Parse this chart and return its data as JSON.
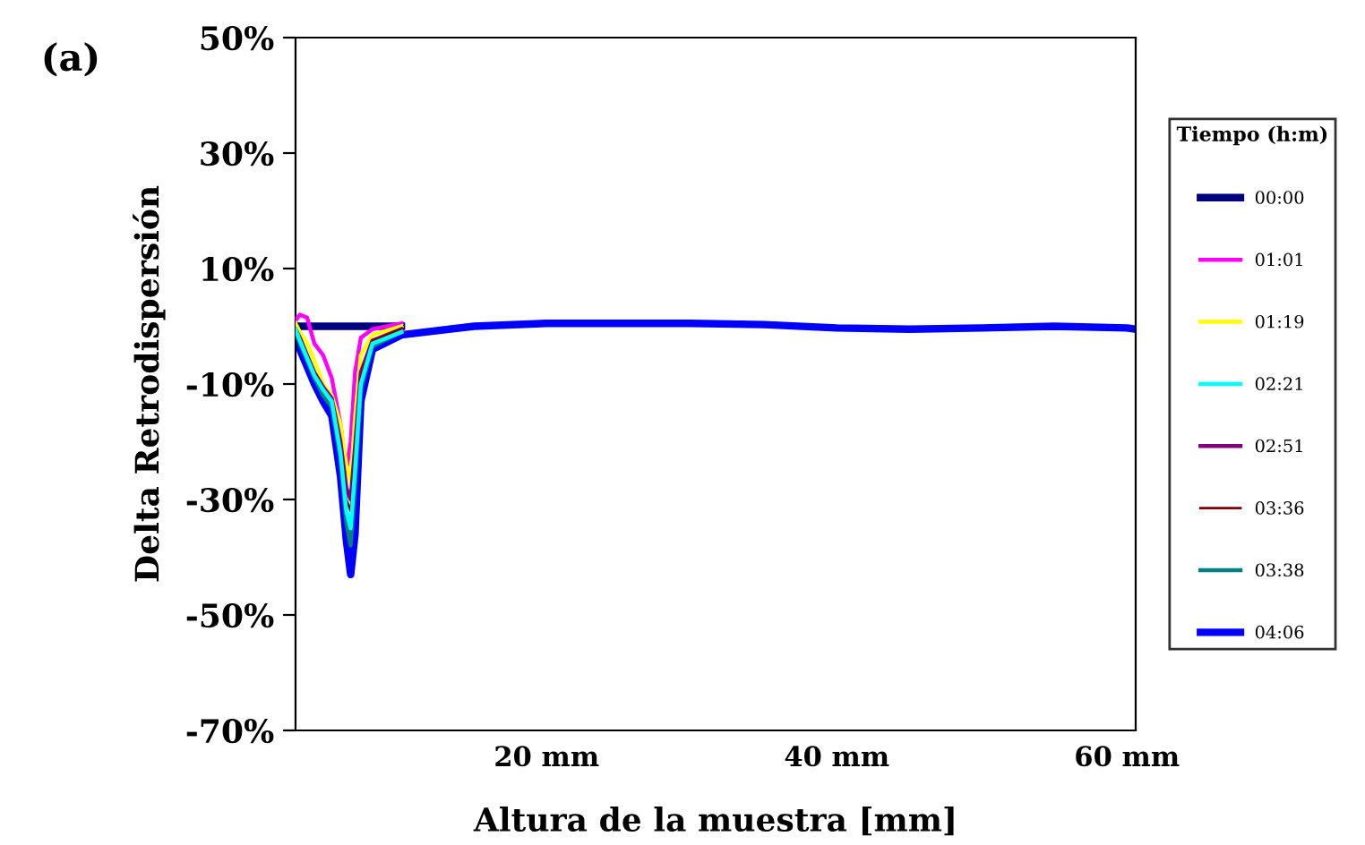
{
  "chart_data": {
    "type": "line",
    "xlabel": "Altura de la muestra [mm]",
    "ylabel": "Delta Retrodispersión",
    "legend_title": "Tiempo (h:m)",
    "annotations": [
      "(a)"
    ],
    "xlim": [
      2.7,
      60.6
    ],
    "xticks": [
      {
        "value": 20,
        "label": "20 mm"
      },
      {
        "value": 40,
        "label": "40 mm"
      },
      {
        "value": 60,
        "label": "60 mm"
      }
    ],
    "ylim": [
      -70,
      50
    ],
    "yticks": [
      {
        "value": -70,
        "label": "-70%"
      },
      {
        "value": -50,
        "label": "-50%"
      },
      {
        "value": -30,
        "label": "-30%"
      },
      {
        "value": -10,
        "label": "-10%"
      },
      {
        "value": 10,
        "label": "10%"
      },
      {
        "value": 30,
        "label": "30%"
      },
      {
        "value": 50,
        "label": "50%"
      }
    ],
    "grid": false,
    "legend": "right",
    "marker": "none",
    "line_style": "solid",
    "x": [
      2.7,
      3.0,
      3.5,
      4.0,
      4.6,
      5.2,
      5.8,
      6.2,
      6.5,
      6.8,
      7.2,
      8.0,
      10,
      15,
      20,
      25,
      30,
      35,
      40,
      45,
      50,
      55,
      60,
      60.6
    ],
    "series": [
      {
        "name": "00:00",
        "color": "#000080",
        "values": [
          0,
          0,
          0,
          0,
          0,
          0,
          0,
          0,
          0,
          0,
          0,
          0,
          0,
          null,
          null,
          null,
          null,
          null,
          null,
          null,
          null,
          null,
          null,
          null
        ]
      },
      {
        "name": "01:01",
        "color": "#ff00ff",
        "values": [
          1,
          2,
          1.5,
          -3,
          -5,
          -9,
          -17,
          -25,
          -20,
          -8,
          -2,
          -0.5,
          0.5,
          null,
          null,
          null,
          null,
          null,
          null,
          null,
          null,
          null,
          null,
          null
        ]
      },
      {
        "name": "01:19",
        "color": "#ffff00",
        "values": [
          0.5,
          -1,
          -3,
          -6,
          -10,
          -12,
          -17,
          -24,
          -27,
          -16,
          -5,
          -1.5,
          0,
          null,
          null,
          null,
          null,
          null,
          null,
          null,
          null,
          null,
          null,
          null
        ]
      },
      {
        "name": "02:21",
        "color": "#00ffff",
        "values": [
          -0.5,
          -2.5,
          -5.5,
          -8.5,
          -11,
          -13,
          -22,
          -32,
          -35,
          -25,
          -10,
          -3,
          -1,
          null,
          null,
          null,
          null,
          null,
          null,
          null,
          null,
          null,
          null,
          null
        ]
      },
      {
        "name": "02:51",
        "color": "#800080",
        "values": [
          -0.5,
          -2,
          -5,
          -8,
          -10.5,
          -12.5,
          -20,
          -28,
          -30,
          -21,
          -8,
          -2.5,
          -0.5,
          null,
          null,
          null,
          null,
          null,
          null,
          null,
          null,
          null,
          null,
          null
        ]
      },
      {
        "name": "03:36",
        "color": "#800000",
        "values": [
          -1,
          -2,
          -5,
          -8,
          -11,
          -13,
          -21,
          -30,
          -32,
          -23,
          -9,
          -2.5,
          -0.5,
          null,
          null,
          null,
          null,
          null,
          null,
          null,
          null,
          null,
          null,
          null
        ]
      },
      {
        "name": "03:38",
        "color": "#008080",
        "values": [
          -1,
          -3,
          -6,
          -9,
          -12,
          -14,
          -23,
          -34,
          -38,
          -28,
          -11,
          -3.5,
          -1,
          null,
          null,
          null,
          null,
          null,
          null,
          null,
          null,
          null,
          null,
          null
        ]
      },
      {
        "name": "04:06",
        "color": "#0000ff",
        "values": [
          0,
          -4,
          -7,
          -10,
          -13,
          -15.5,
          -26,
          -37,
          -43,
          -36,
          -13,
          -4,
          -1.5,
          0,
          0.5,
          0.5,
          0.5,
          0.3,
          -0.3,
          -0.5,
          -0.3,
          0,
          -0.3,
          -0.5
        ]
      }
    ]
  }
}
